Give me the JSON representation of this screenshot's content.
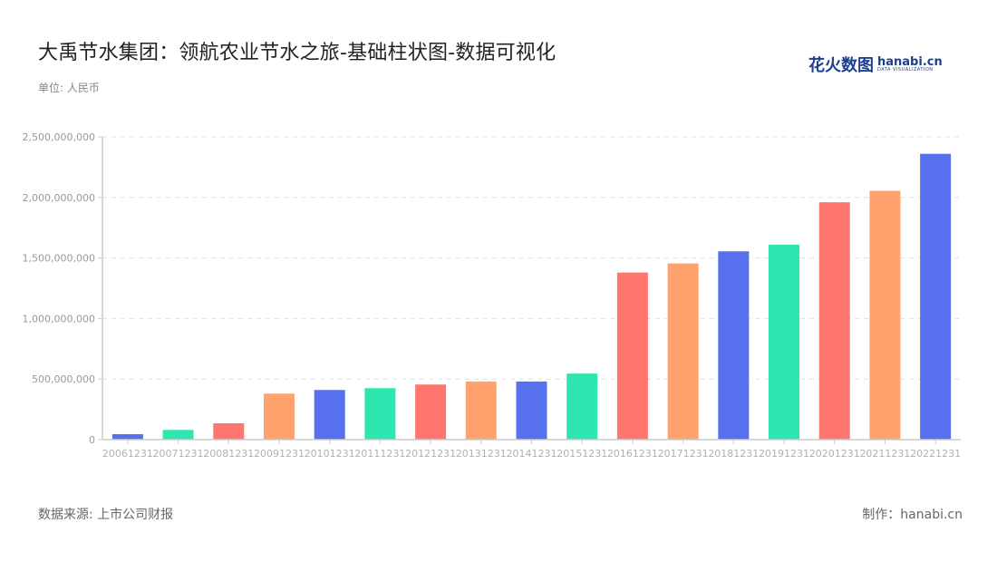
{
  "header": {
    "title": "大禹节水集团：领航农业节水之旅-基础柱状图-数据可视化",
    "unit": "单位: 人民币"
  },
  "logo": {
    "cn": "花火数图",
    "en": "hanabi.cn",
    "tagline": "DATA VISUALIZATION"
  },
  "footer": {
    "source": "数据来源: 上市公司财报",
    "credit": "制作：hanabi.cn"
  },
  "colors": [
    "#5670ee",
    "#2ee6b0",
    "#ff7670",
    "#ffa26e"
  ],
  "chart_data": {
    "type": "bar",
    "title": "大禹节水集团：领航农业节水之旅-基础柱状图-数据可视化",
    "xlabel": "",
    "ylabel": "单位: 人民币",
    "ylim": [
      0,
      2500000000
    ],
    "yticks": [
      0,
      500000000,
      1000000000,
      1500000000,
      2000000000,
      2500000000
    ],
    "ytick_labels": [
      "0",
      "500,000,000",
      "1,000,000,000",
      "1,500,000,000",
      "2,000,000,000",
      "2,500,000,000"
    ],
    "grid": true,
    "legend": "none",
    "categories": [
      "20061231",
      "20071231",
      "20081231",
      "20091231",
      "20101231",
      "20111231",
      "20121231",
      "20131231",
      "20141231",
      "20151231",
      "20161231",
      "20171231",
      "20181231",
      "20191231",
      "20201231",
      "20211231",
      "20221231"
    ],
    "values": [
      45000000,
      80000000,
      135000000,
      380000000,
      410000000,
      425000000,
      455000000,
      480000000,
      480000000,
      545000000,
      1380000000,
      1455000000,
      1555000000,
      1610000000,
      1960000000,
      2055000000,
      2360000000
    ]
  }
}
